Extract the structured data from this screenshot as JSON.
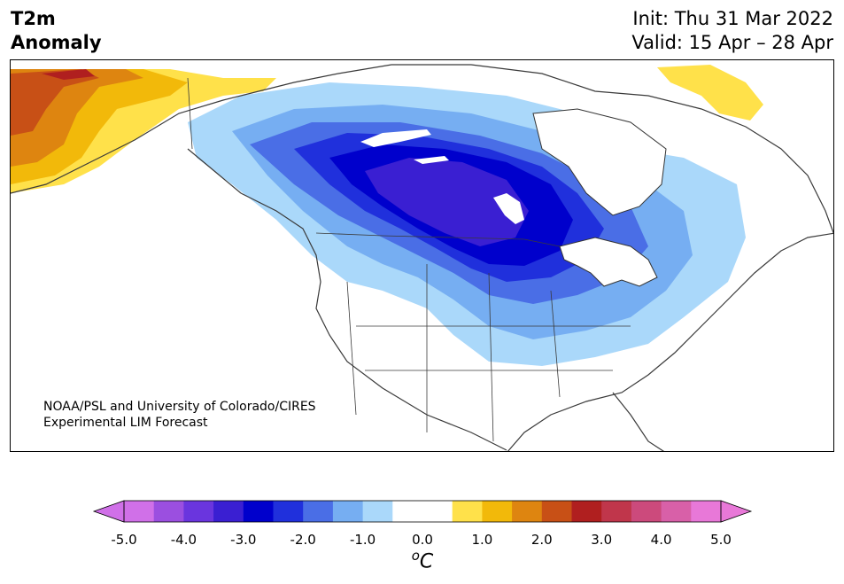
{
  "header": {
    "title_line1": "T2m",
    "title_line2": "Anomaly",
    "init": "Init: Thu 31 Mar 2022",
    "valid": "Valid: 15 Apr – 28 Apr"
  },
  "credit": {
    "line1": "NOAA/PSL and University of Colorado/CIRES",
    "line2": "Experimental LIM Forecast"
  },
  "colorbar": {
    "unit_prefix": "o",
    "unit_main": "C",
    "tick_labels": [
      "-5.0",
      "-4.0",
      "-3.0",
      "-2.0",
      "-1.0",
      "0.0",
      "1.0",
      "2.0",
      "3.0",
      "4.0",
      "5.0"
    ],
    "colors": [
      "#d070e8",
      "#9b4fe0",
      "#6a35de",
      "#3a1fd2",
      "#0000cc",
      "#2030dc",
      "#4a6ee6",
      "#76aef2",
      "#aad8fa",
      "#ffffff",
      "#ffffff",
      "#ffe14a",
      "#f2b90a",
      "#de8510",
      "#c85016",
      "#b01f1f",
      "#c0364b",
      "#cc4a7c",
      "#d860a8",
      "#e878d8"
    ],
    "extend_min_color": "#d070e8",
    "extend_max_color": "#e878d8"
  },
  "map": {
    "variable": "2m temperature anomaly",
    "region": "North America"
  }
}
